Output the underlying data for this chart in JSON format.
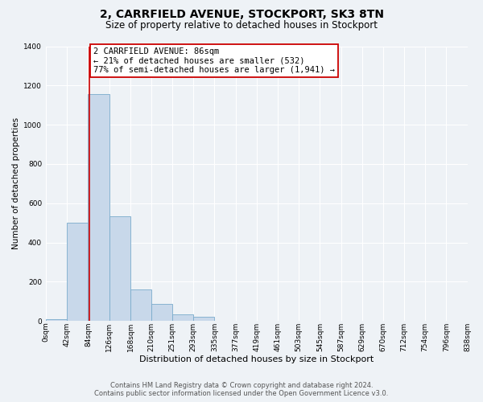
{
  "title": "2, CARRFIELD AVENUE, STOCKPORT, SK3 8TN",
  "subtitle": "Size of property relative to detached houses in Stockport",
  "xlabel": "Distribution of detached houses by size in Stockport",
  "ylabel": "Number of detached properties",
  "bin_edges": [
    0,
    42,
    84,
    126,
    168,
    210,
    251,
    293,
    335,
    377,
    419,
    461,
    503,
    545,
    587,
    629,
    670,
    712,
    754,
    796,
    838
  ],
  "bin_labels": [
    "0sqm",
    "42sqm",
    "84sqm",
    "126sqm",
    "168sqm",
    "210sqm",
    "251sqm",
    "293sqm",
    "335sqm",
    "377sqm",
    "419sqm",
    "461sqm",
    "503sqm",
    "545sqm",
    "587sqm",
    "629sqm",
    "670sqm",
    "712sqm",
    "754sqm",
    "796sqm",
    "838sqm"
  ],
  "bar_heights": [
    10,
    500,
    1155,
    535,
    160,
    85,
    35,
    20,
    0,
    0,
    0,
    0,
    0,
    0,
    0,
    0,
    0,
    0,
    0,
    0
  ],
  "bar_color": "#c8d8ea",
  "bar_edge_color": "#7aabcc",
  "vline_x": 86,
  "vline_color": "#cc0000",
  "annotation_title": "2 CARRFIELD AVENUE: 86sqm",
  "annotation_line1": "← 21% of detached houses are smaller (532)",
  "annotation_line2": "77% of semi-detached houses are larger (1,941) →",
  "annotation_box_facecolor": "#ffffff",
  "annotation_box_edgecolor": "#cc0000",
  "ylim": [
    0,
    1400
  ],
  "yticks": [
    0,
    200,
    400,
    600,
    800,
    1000,
    1200,
    1400
  ],
  "bg_color": "#eef2f6",
  "grid_color": "#ffffff",
  "footer_line1": "Contains HM Land Registry data © Crown copyright and database right 2024.",
  "footer_line2": "Contains public sector information licensed under the Open Government Licence v3.0.",
  "title_fontsize": 10,
  "subtitle_fontsize": 8.5,
  "xlabel_fontsize": 8,
  "ylabel_fontsize": 7.5,
  "tick_fontsize": 6.5,
  "annotation_fontsize": 7.5,
  "footer_fontsize": 6
}
